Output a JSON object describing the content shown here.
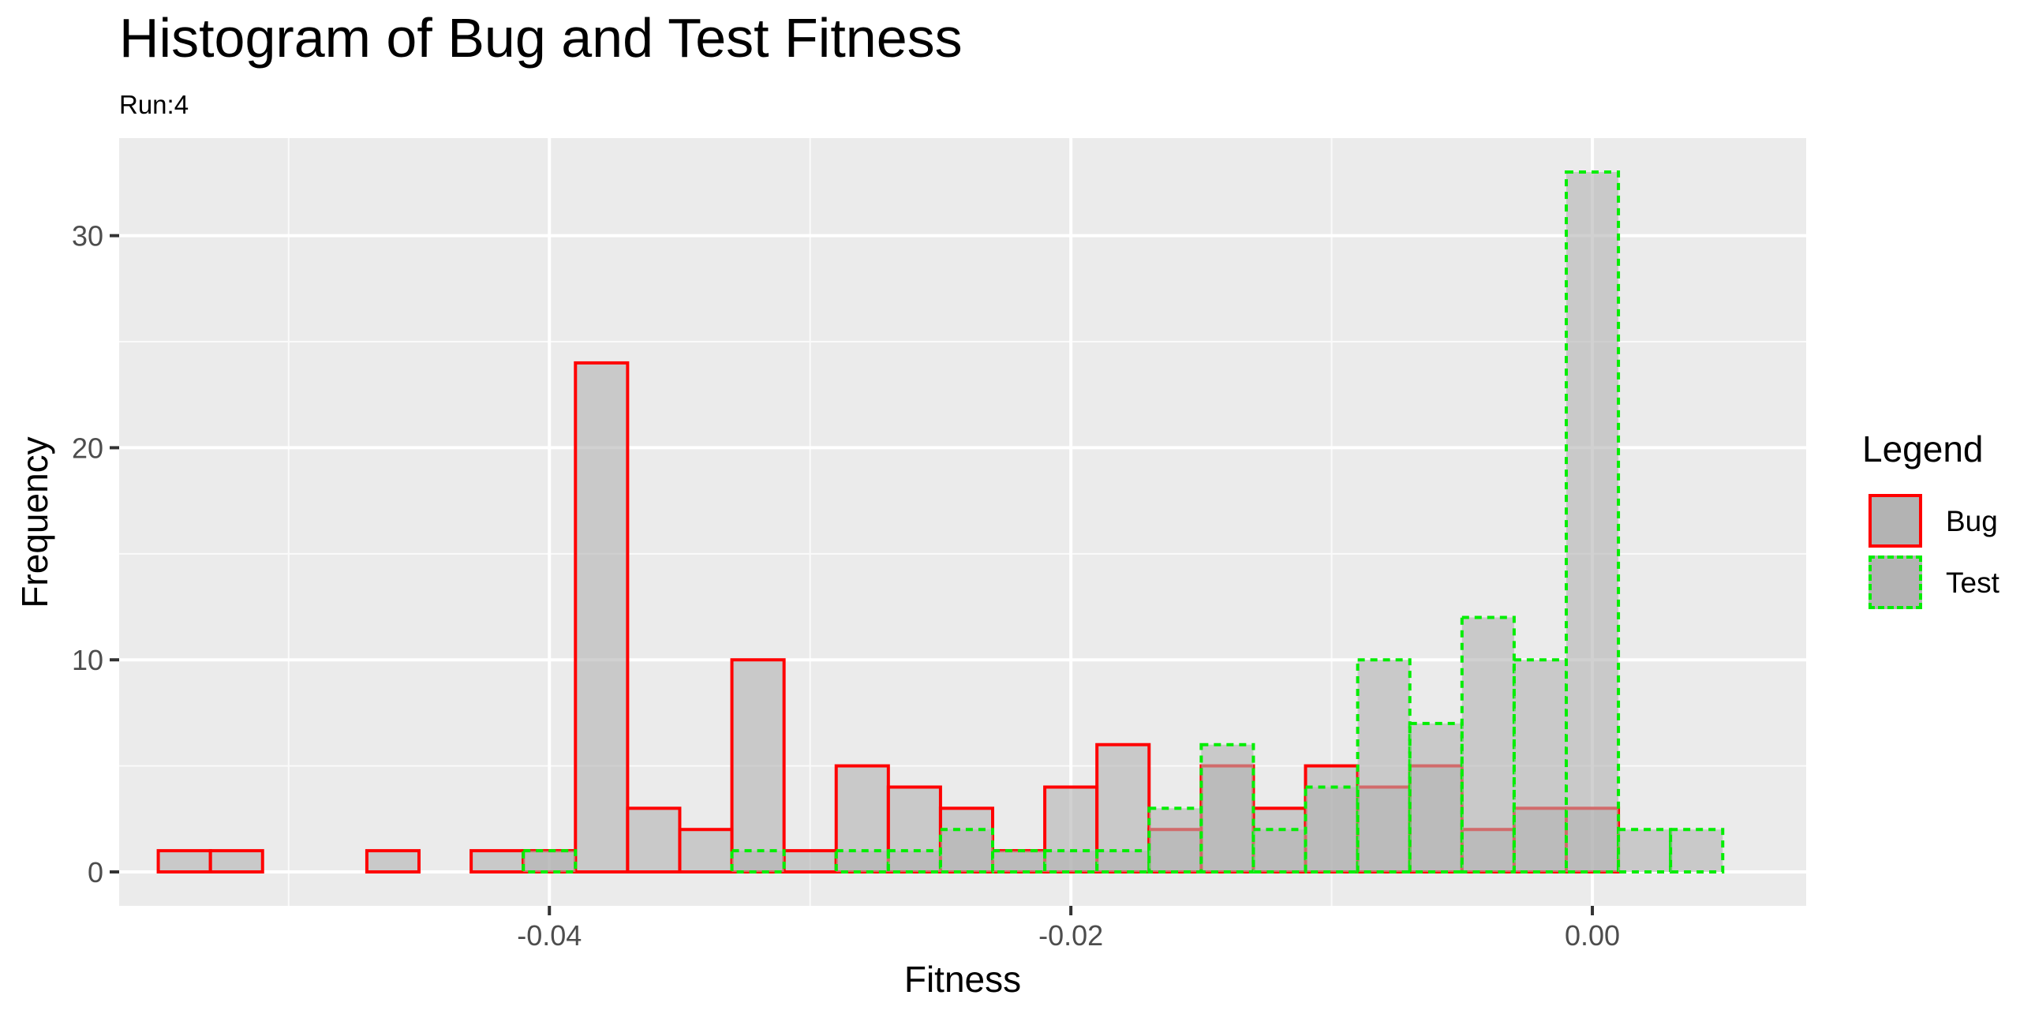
{
  "chart_data": {
    "type": "bar",
    "title": "Histogram of Bug and Test Fitness",
    "subtitle": "Run:4",
    "xlabel": "Fitness",
    "ylabel": "Frequency",
    "xlim": [
      -0.0565,
      0.0082
    ],
    "ylim": [
      -1.6,
      34.6
    ],
    "x_ticks": [
      -0.04,
      -0.02,
      0.0
    ],
    "x_tick_labels": [
      "-0.04",
      "-0.02",
      "0.00"
    ],
    "y_ticks": [
      0,
      10,
      20,
      30
    ],
    "y_tick_labels": [
      "0",
      "10",
      "20",
      "30"
    ],
    "bin_width": 0.002,
    "bin_starts": [
      -0.055,
      -0.053,
      -0.051,
      -0.049,
      -0.047,
      -0.045,
      -0.043,
      -0.041,
      -0.039,
      -0.037,
      -0.035,
      -0.033,
      -0.031,
      -0.029,
      -0.027,
      -0.025,
      -0.023,
      -0.021,
      -0.019,
      -0.017,
      -0.015,
      -0.013,
      -0.011,
      -0.009,
      -0.007,
      -0.005,
      -0.003,
      -0.001,
      0.001,
      0.003
    ],
    "grid": true,
    "legend": {
      "title": "Legend",
      "position": "right"
    },
    "series": [
      {
        "name": "Bug",
        "color": "#ff0000",
        "line": "solid",
        "values": [
          1,
          1,
          0,
          0,
          1,
          0,
          1,
          1,
          24,
          3,
          2,
          10,
          1,
          5,
          4,
          3,
          1,
          4,
          6,
          2,
          5,
          3,
          5,
          4,
          5,
          2,
          3,
          3,
          0,
          0
        ]
      },
      {
        "name": "Test",
        "color": "#00ee00",
        "line": "dashed",
        "values": [
          0,
          0,
          0,
          0,
          0,
          0,
          0,
          1,
          0,
          0,
          0,
          1,
          0,
          1,
          1,
          2,
          1,
          1,
          1,
          3,
          6,
          2,
          4,
          10,
          7,
          12,
          10,
          33,
          2,
          2
        ]
      }
    ]
  }
}
